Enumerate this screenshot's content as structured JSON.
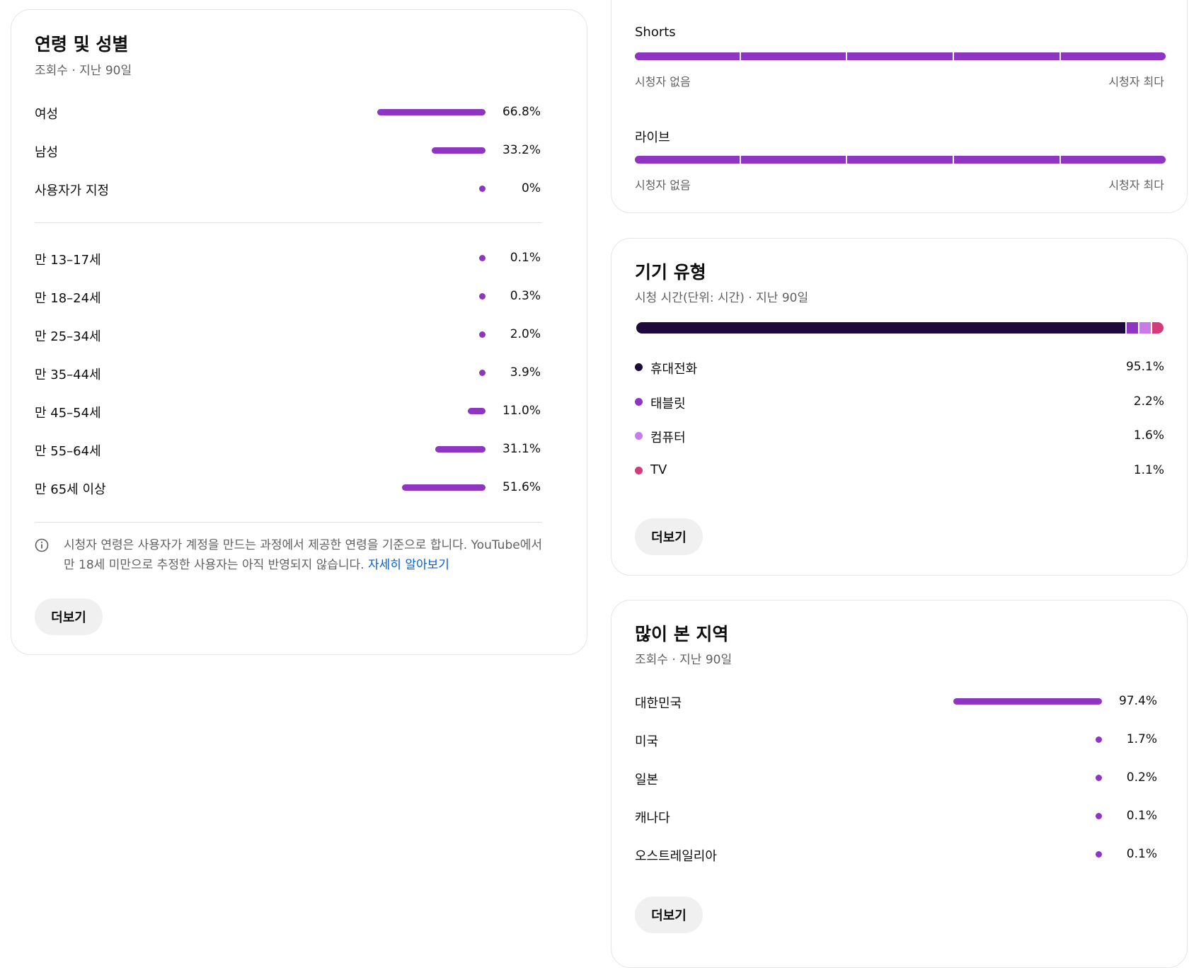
{
  "age_gender": {
    "title": "연령 및 성별",
    "subtitle": "조회수 · 지난 90일",
    "gender": [
      {
        "label": "여성",
        "value": "66.8%",
        "pct": 66.8
      },
      {
        "label": "남성",
        "value": "33.2%",
        "pct": 33.2
      },
      {
        "label": "사용자가 지정",
        "value": "0%",
        "pct": 0
      }
    ],
    "ages": [
      {
        "label": "만 13–17세",
        "value": "0.1%",
        "pct": 0.1
      },
      {
        "label": "만 18–24세",
        "value": "0.3%",
        "pct": 0.3
      },
      {
        "label": "만 25–34세",
        "value": "2.0%",
        "pct": 2.0
      },
      {
        "label": "만 35–44세",
        "value": "3.9%",
        "pct": 3.9
      },
      {
        "label": "만 45–54세",
        "value": "11.0%",
        "pct": 11.0
      },
      {
        "label": "만 55–64세",
        "value": "31.1%",
        "pct": 31.1
      },
      {
        "label": "만 65세 이상",
        "value": "51.6%",
        "pct": 51.6
      }
    ],
    "note_text": "시청자 연령은 사용자가 계정을 만드는 과정에서 제공한 연령을 기준으로 합니다. YouTube에서 만 18세 미만으로 추정한 사용자는 아직 반영되지 않습니다.",
    "note_link": "자세히 알아보기",
    "more_label": "더보기"
  },
  "content_type": {
    "rows": [
      {
        "label": "Shorts",
        "min_label": "시청자 없음",
        "max_label": "시청자 최다"
      },
      {
        "label": "라이브",
        "min_label": "시청자 없음",
        "max_label": "시청자 최다"
      }
    ]
  },
  "device": {
    "title": "기기 유형",
    "subtitle": "시청 시간(단위: 시간) · 지난 90일",
    "items": [
      {
        "label": "휴대전화",
        "value": "95.1%",
        "pct": 95.1,
        "color": "#1f0a3d"
      },
      {
        "label": "태블릿",
        "value": "2.2%",
        "pct": 2.2,
        "color": "#8e35c1"
      },
      {
        "label": "컴퓨터",
        "value": "1.6%",
        "pct": 1.6,
        "color": "#c77ce8"
      },
      {
        "label": "TV",
        "value": "1.1%",
        "pct": 1.1,
        "color": "#d63a7a"
      }
    ],
    "more_label": "더보기"
  },
  "geo": {
    "title": "많이 본 지역",
    "subtitle": "조회수 · 지난 90일",
    "items": [
      {
        "label": "대한민국",
        "value": "97.4%",
        "pct": 97.4
      },
      {
        "label": "미국",
        "value": "1.7%",
        "pct": 1.7
      },
      {
        "label": "일본",
        "value": "0.2%",
        "pct": 0.2
      },
      {
        "label": "캐나다",
        "value": "0.1%",
        "pct": 0.1
      },
      {
        "label": "오스트레일리아",
        "value": "0.1%",
        "pct": 0.1
      }
    ],
    "more_label": "더보기"
  },
  "colors": {
    "bar": "#8e35c1",
    "link": "#065fd4"
  }
}
